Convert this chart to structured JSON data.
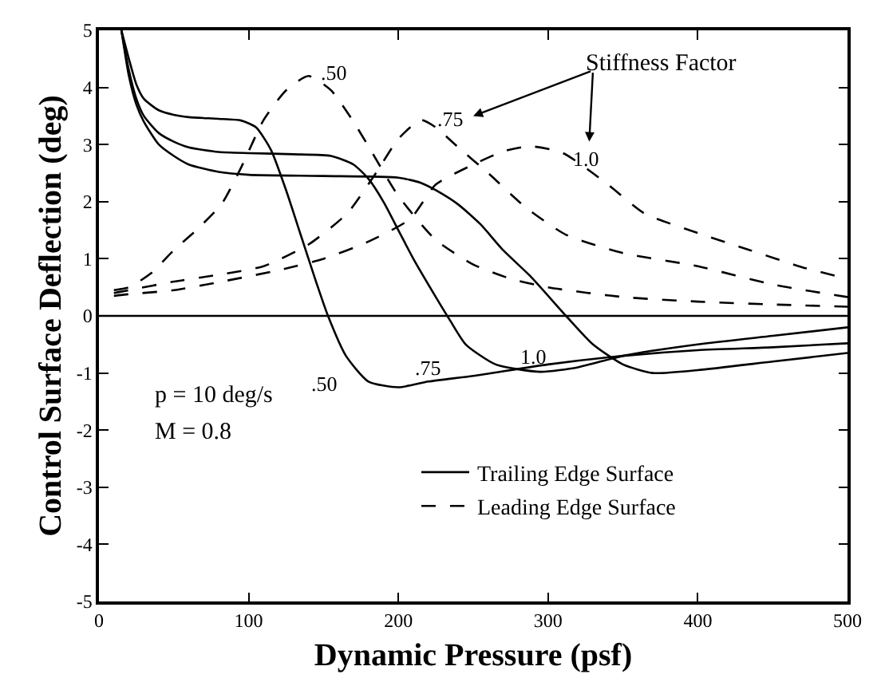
{
  "chart_data": {
    "type": "line",
    "xlabel": "Dynamic Pressure (psf)",
    "ylabel": "Control Surface Deflection (deg)",
    "xlim": [
      0,
      500
    ],
    "xticks": [
      0,
      100,
      200,
      300,
      400,
      500
    ],
    "ylim": [
      -5,
      5
    ],
    "yticks": [
      -5,
      -4,
      -3,
      -2,
      -1,
      0,
      1,
      2,
      3,
      4,
      5
    ],
    "legend": "bottom right",
    "marker": "none",
    "ref_lines": [
      {
        "axis": "y",
        "value": 0
      }
    ],
    "annotations": [
      ".50",
      ".75",
      "1.0",
      "Stiffness Factor",
      ".50",
      ".75",
      "1.0",
      "p = 10 deg/s",
      "M = 0.8"
    ],
    "series": [
      {
        "name": "Trailing Edge Surface",
        "color": "#000000",
        "line_style": "solid",
        "x": [
          15,
          20,
          25,
          30,
          40,
          50,
          60,
          80,
          95,
          105,
          115,
          125,
          135,
          145,
          153,
          165,
          180,
          200,
          220,
          250,
          300,
          350,
          400,
          450,
          500
        ],
        "values": [
          5.0,
          4.5,
          4.05,
          3.8,
          3.6,
          3.52,
          3.48,
          3.45,
          3.42,
          3.3,
          2.9,
          2.2,
          1.4,
          0.6,
          0.0,
          -0.7,
          -1.15,
          -1.25,
          -1.15,
          -1.05,
          -0.85,
          -0.7,
          -0.6,
          -0.55,
          -0.48
        ]
      },
      {
        "color": "#000000",
        "line_style": "solid",
        "x": [
          15,
          20,
          25,
          30,
          40,
          50,
          60,
          80,
          100,
          130,
          155,
          170,
          180,
          190,
          200,
          210,
          225,
          235,
          245,
          265,
          295,
          320,
          350,
          400,
          450,
          500
        ],
        "values": [
          5.0,
          4.3,
          3.8,
          3.5,
          3.2,
          3.05,
          2.95,
          2.87,
          2.85,
          2.83,
          2.8,
          2.65,
          2.4,
          2.0,
          1.5,
          1.0,
          0.33,
          -0.1,
          -0.5,
          -0.85,
          -0.98,
          -0.9,
          -0.7,
          -0.5,
          -0.35,
          -0.2
        ]
      },
      {
        "color": "#000000",
        "line_style": "solid",
        "x": [
          15,
          20,
          25,
          30,
          40,
          50,
          60,
          80,
          100,
          150,
          200,
          215,
          225,
          240,
          255,
          270,
          288,
          312,
          330,
          350,
          370,
          400,
          450,
          500
        ],
        "values": [
          5.0,
          4.2,
          3.7,
          3.4,
          3.0,
          2.8,
          2.65,
          2.52,
          2.47,
          2.45,
          2.42,
          2.33,
          2.2,
          1.95,
          1.6,
          1.15,
          0.7,
          0.0,
          -0.5,
          -0.85,
          -1.0,
          -0.95,
          -0.8,
          -0.65
        ]
      },
      {
        "name": "Leading Edge Surface",
        "color": "#000000",
        "line_style": "dashed",
        "x": [
          10,
          20,
          35,
          50,
          65,
          82,
          95,
          110,
          125,
          140,
          155,
          170,
          180,
          200,
          225,
          250,
          275,
          300,
          350,
          400,
          450,
          500
        ],
        "values": [
          0.45,
          0.5,
          0.75,
          1.15,
          1.5,
          1.96,
          2.6,
          3.43,
          3.95,
          4.2,
          3.95,
          3.4,
          2.97,
          2.1,
          1.33,
          0.9,
          0.65,
          0.5,
          0.33,
          0.25,
          0.2,
          0.16
        ]
      },
      {
        "color": "#000000",
        "line_style": "dashed",
        "x": [
          10,
          20,
          50,
          80,
          110,
          140,
          166,
          185,
          200,
          215,
          225,
          240,
          260,
          285,
          312,
          350,
          400,
          450,
          500
        ],
        "values": [
          0.4,
          0.45,
          0.6,
          0.72,
          0.87,
          1.25,
          1.8,
          2.5,
          3.1,
          3.43,
          3.3,
          2.95,
          2.5,
          1.9,
          1.42,
          1.1,
          0.87,
          0.55,
          0.33
        ]
      },
      {
        "color": "#000000",
        "line_style": "dashed",
        "x": [
          10,
          20,
          50,
          82,
          120,
          150,
          180,
          208,
          225,
          250,
          270,
          288,
          310,
          340,
          364,
          400,
          435,
          470,
          500
        ],
        "values": [
          0.35,
          0.38,
          0.45,
          0.6,
          0.8,
          1.0,
          1.3,
          1.7,
          2.3,
          2.65,
          2.88,
          2.97,
          2.85,
          2.3,
          1.8,
          1.45,
          1.15,
          0.85,
          0.65
        ]
      }
    ]
  }
}
